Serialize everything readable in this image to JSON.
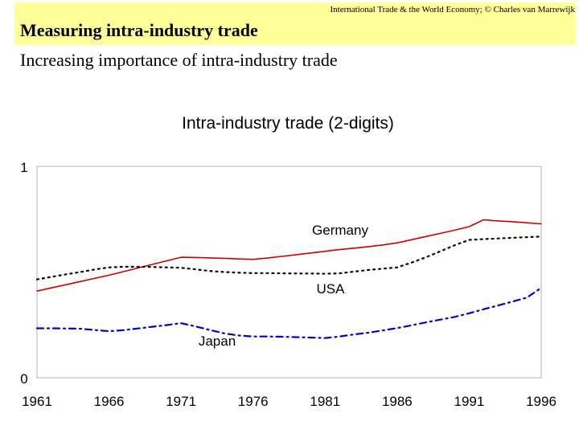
{
  "slide": {
    "credit": "International Trade & the World Economy;  © Charles van Marrewijk",
    "title": "Measuring intra-industry trade",
    "subtitle": "Increasing importance of intra-industry trade"
  },
  "chart_data": {
    "type": "line",
    "title": "Intra-industry trade (2-digits)",
    "xlabel": "",
    "ylabel": "",
    "x": [
      1961,
      1962,
      1963,
      1964,
      1965,
      1966,
      1967,
      1968,
      1969,
      1970,
      1971,
      1972,
      1973,
      1974,
      1975,
      1976,
      1977,
      1978,
      1979,
      1980,
      1981,
      1982,
      1983,
      1984,
      1985,
      1986,
      1987,
      1988,
      1989,
      1990,
      1991,
      1992,
      1993,
      1994,
      1995,
      1996
    ],
    "xticks": [
      "1961",
      "1966",
      "1971",
      "1976",
      "1981",
      "1986",
      "1991",
      "1996"
    ],
    "yticks": [
      "0",
      "1"
    ],
    "ylim": [
      0,
      1
    ],
    "grid": false,
    "series": [
      {
        "name": "Germany",
        "color": "#cc0000",
        "dash": "solid",
        "values": [
          0.41,
          0.425,
          0.44,
          0.455,
          0.47,
          0.485,
          0.502,
          0.519,
          0.536,
          0.553,
          0.57,
          0.569,
          0.567,
          0.565,
          0.562,
          0.56,
          0.566,
          0.574,
          0.582,
          0.59,
          0.598,
          0.606,
          0.613,
          0.62,
          0.628,
          0.638,
          0.653,
          0.668,
          0.683,
          0.698,
          0.715,
          0.747,
          0.742,
          0.738,
          0.733,
          0.728
        ]
      },
      {
        "name": "USA",
        "color": "#000000",
        "dash": "dotted",
        "values": [
          0.465,
          0.477,
          0.489,
          0.5,
          0.512,
          0.522,
          0.525,
          0.525,
          0.524,
          0.522,
          0.52,
          0.513,
          0.505,
          0.5,
          0.497,
          0.495,
          0.495,
          0.494,
          0.493,
          0.493,
          0.492,
          0.494,
          0.502,
          0.51,
          0.516,
          0.522,
          0.545,
          0.57,
          0.598,
          0.627,
          0.652,
          0.656,
          0.659,
          0.662,
          0.665,
          0.668
        ]
      },
      {
        "name": "Japan",
        "color": "#0000cc",
        "dash": "dashdot",
        "values": [
          0.234,
          0.234,
          0.233,
          0.232,
          0.226,
          0.22,
          0.225,
          0.233,
          0.241,
          0.249,
          0.258,
          0.243,
          0.226,
          0.21,
          0.2,
          0.195,
          0.195,
          0.194,
          0.192,
          0.19,
          0.188,
          0.195,
          0.205,
          0.213,
          0.224,
          0.235,
          0.248,
          0.262,
          0.275,
          0.288,
          0.305,
          0.324,
          0.342,
          0.36,
          0.379,
          0.425
        ]
      }
    ]
  }
}
